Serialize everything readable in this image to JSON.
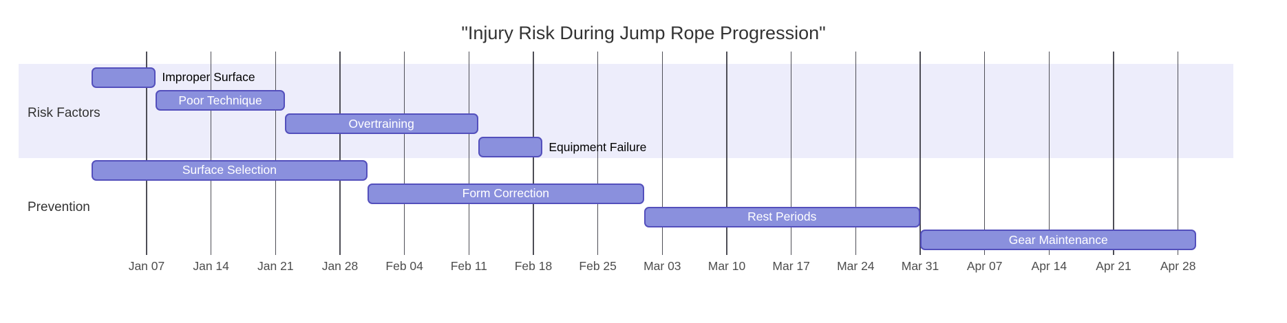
{
  "chart_data": {
    "type": "gantt",
    "title": "\"Injury Risk During Jump Rope Progression\"",
    "x_axis": {
      "tick_labels": [
        "Jan 07",
        "Jan 14",
        "Jan 21",
        "Jan 28",
        "Feb 04",
        "Feb 11",
        "Feb 18",
        "Feb 25",
        "Mar 03",
        "Mar 10",
        "Mar 17",
        "Mar 24",
        "Mar 31",
        "Apr 07",
        "Apr 14",
        "Apr 21",
        "Apr 28"
      ],
      "tick_day_offsets": [
        6,
        13,
        20,
        27,
        34,
        41,
        48,
        55,
        62,
        69,
        76,
        83,
        90,
        97,
        104,
        111,
        118
      ],
      "start_date": "Jan 01",
      "end_date": "Apr 30",
      "grid": "vertical-weekly-lines"
    },
    "sections": [
      {
        "name": "Risk Factors",
        "tasks": [
          {
            "label": "Improper Surface",
            "start": "Jan 01",
            "end": "Jan 08",
            "duration_days": 7,
            "day_start": 0,
            "day_end": 7,
            "label_position": "outside"
          },
          {
            "label": "Poor Technique",
            "start": "Jan 08",
            "end": "Jan 22",
            "duration_days": 14,
            "day_start": 7,
            "day_end": 21,
            "label_position": "inside"
          },
          {
            "label": "Overtraining",
            "start": "Jan 22",
            "end": "Feb 12",
            "duration_days": 21,
            "day_start": 21,
            "day_end": 42,
            "label_position": "inside"
          },
          {
            "label": "Equipment Failure",
            "start": "Feb 12",
            "end": "Feb 19",
            "duration_days": 7,
            "day_start": 42,
            "day_end": 49,
            "label_position": "outside"
          }
        ]
      },
      {
        "name": "Prevention",
        "tasks": [
          {
            "label": "Surface Selection",
            "start": "Jan 01",
            "end": "Jan 31",
            "duration_days": 30,
            "day_start": 0,
            "day_end": 30,
            "label_position": "inside"
          },
          {
            "label": "Form Correction",
            "start": "Jan 31",
            "end": "Mar 01",
            "duration_days": 30,
            "day_start": 30,
            "day_end": 60,
            "label_position": "inside"
          },
          {
            "label": "Rest Periods",
            "start": "Mar 01",
            "end": "Mar 31",
            "duration_days": 30,
            "day_start": 60,
            "day_end": 90,
            "label_position": "inside"
          },
          {
            "label": "Gear Maintenance",
            "start": "Mar 31",
            "end": "Apr 30",
            "duration_days": 30,
            "day_start": 90,
            "day_end": 120,
            "label_position": "inside"
          }
        ]
      }
    ],
    "colors": {
      "bar_fill": "#8a90dd",
      "bar_border": "#534fbc",
      "task_text_inside": "#ffffff",
      "task_text_outside": "#000000",
      "section_band": "#ededfb",
      "alt_section_band": "#ffffff",
      "grid_line": "#4d4d55",
      "axis_text": "#4d4d4d",
      "title_text": "#333333",
      "section_label_text": "#333333"
    }
  }
}
